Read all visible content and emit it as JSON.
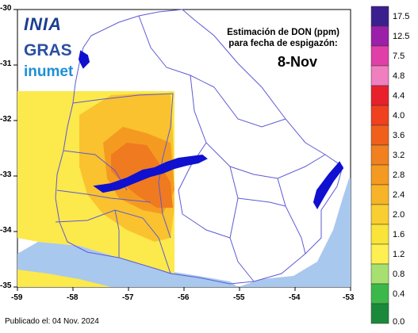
{
  "logos": {
    "inia": "INIA",
    "gras": "GRAS",
    "inumet": "inumet"
  },
  "title": {
    "line1": "Estimación de DON (ppm)",
    "line2": "para fecha de espigazón:",
    "date": "8-Nov"
  },
  "published": "Publicado el: 04 Nov. 2024",
  "x_ticks": [
    "-59",
    "-58",
    "-57",
    "-56",
    "-55",
    "-54",
    "-53"
  ],
  "y_ticks": [
    "-30",
    "-31",
    "-32",
    "-33",
    "-34",
    "-35"
  ],
  "colorbar": {
    "labels": [
      "17.5",
      "12.5",
      "7.5",
      "4.8",
      "4.4",
      "4.0",
      "3.6",
      "3.2",
      "2.8",
      "2.4",
      "2.0",
      "1.6",
      "1.2",
      "0.8",
      "0.4",
      "0.0"
    ],
    "colors": [
      "#3b1f8f",
      "#9b1fa8",
      "#e03fa8",
      "#f07fbf",
      "#e8202b",
      "#f04020",
      "#f0601c",
      "#f08020",
      "#f59a20",
      "#f7b428",
      "#f9ce30",
      "#fbe43a",
      "#fdf050",
      "#a7e070",
      "#3cb84a",
      "#1a8a3a"
    ]
  },
  "chart_data": {
    "type": "heatmap",
    "title": "Estimación de DON (ppm) para fecha de espigazón: 8-Nov",
    "xlim": [
      -59,
      -53
    ],
    "ylim": [
      -35,
      -30
    ],
    "color_scale": [
      0.0,
      0.4,
      0.8,
      1.2,
      1.6,
      2.0,
      2.4,
      2.8,
      3.2,
      3.6,
      4.0,
      4.4,
      4.8,
      7.5,
      12.5,
      17.5
    ],
    "notes": []
  }
}
